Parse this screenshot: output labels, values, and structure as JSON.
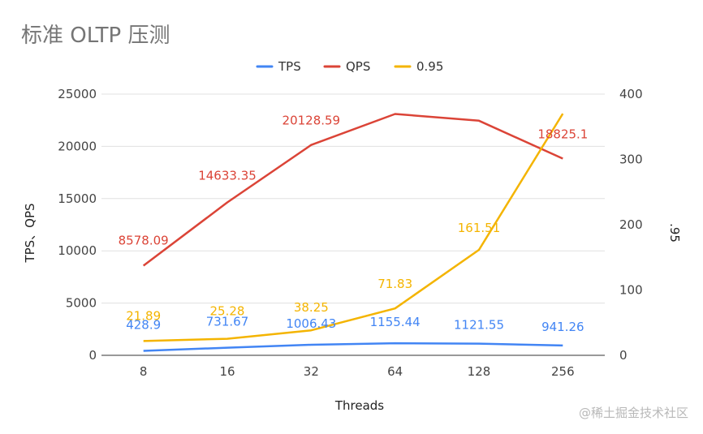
{
  "title": "标准 OLTP 压测",
  "watermark": "@稀土掘金技术社区",
  "colors": {
    "tps": "#4285f4",
    "qps": "#db4437",
    "p95": "#f4b400",
    "grid": "#e0e0e0",
    "baseline": "#333333"
  },
  "chart_data": {
    "type": "line",
    "title": "标准 OLTP 压测",
    "xlabel": "Threads",
    "ylabel_left": "TPS、QPS",
    "ylabel_right": ".95",
    "categories": [
      "8",
      "16",
      "32",
      "64",
      "128",
      "256"
    ],
    "ylim_left": [
      0,
      25000
    ],
    "ylim_right": [
      0,
      400
    ],
    "yticks_left": [
      "0",
      "5000",
      "10000",
      "15000",
      "20000",
      "25000"
    ],
    "yticks_right": [
      "0",
      "100",
      "200",
      "300",
      "400"
    ],
    "legend_position": "top",
    "grid": true,
    "series": [
      {
        "name": "TPS",
        "axis": "left",
        "color": "#4285f4",
        "values": [
          428.9,
          731.67,
          1006.43,
          1155.44,
          1121.55,
          941.26
        ],
        "labels": [
          "428.9",
          "731.67",
          "1006.43",
          "1155.44",
          "1121.55",
          "941.26"
        ]
      },
      {
        "name": "QPS",
        "axis": "left",
        "color": "#db4437",
        "values": [
          8578.09,
          14633.35,
          20128.59,
          23100,
          22450,
          18825.1
        ],
        "labels": [
          "8578.09",
          "14633.35",
          "20128.59",
          "",
          "",
          "18825.1"
        ]
      },
      {
        "name": "0.95",
        "axis": "right",
        "color": "#f4b400",
        "values": [
          21.89,
          25.28,
          38.25,
          71.83,
          161.51,
          370
        ],
        "labels": [
          "21.89",
          "25.28",
          "38.25",
          "71.83",
          "161.51",
          ""
        ]
      }
    ]
  }
}
